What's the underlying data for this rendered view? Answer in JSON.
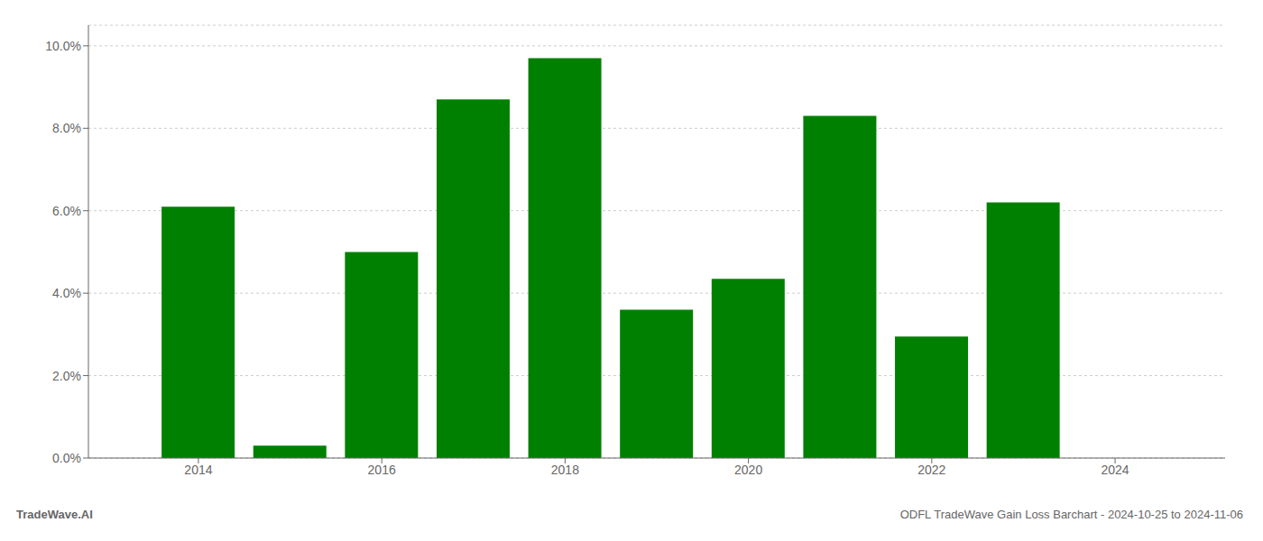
{
  "chart_data": {
    "type": "bar",
    "x": [
      2014,
      2015,
      2016,
      2017,
      2018,
      2019,
      2020,
      2021,
      2022,
      2023
    ],
    "values": [
      0.061,
      0.003,
      0.05,
      0.087,
      0.097,
      0.036,
      0.0435,
      0.083,
      0.0295,
      0.062
    ],
    "color": "#008000",
    "xlim": [
      2012.8,
      2025.2
    ],
    "xticks": [
      2014,
      2016,
      2018,
      2020,
      2022,
      2024
    ],
    "ylim": [
      0,
      0.105
    ],
    "yticks": [
      {
        "value": 0,
        "label": "0.0%"
      },
      {
        "value": 0.02,
        "label": "2.0%"
      },
      {
        "value": 0.04,
        "label": "4.0%"
      },
      {
        "value": 0.06,
        "label": "6.0%"
      },
      {
        "value": 0.08,
        "label": "8.0%"
      },
      {
        "value": 0.1,
        "label": "10.0%"
      }
    ],
    "grid": true,
    "annotations": [
      "TradeWave.AI",
      "ODFL TradeWave Gain Loss Barchart - 2024-10-25 to 2024-11-06"
    ]
  }
}
